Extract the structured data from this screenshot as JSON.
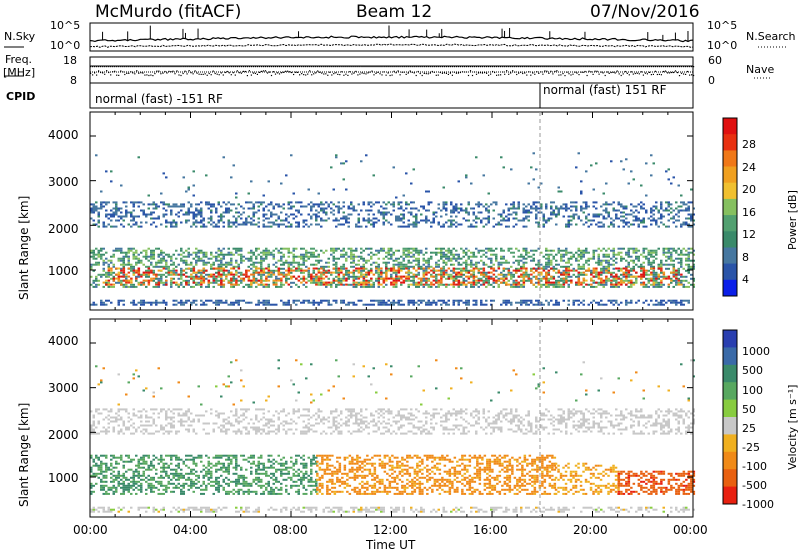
{
  "header": {
    "station": "McMurdo (fitACF)",
    "beam": "Beam 12",
    "date": "07/Nov/2016"
  },
  "left_labels": {
    "nsky": "N.Sky",
    "freq": "Freq.",
    "freq_unit": "[MHz]",
    "cpid": "CPID"
  },
  "right_labels": {
    "nsearch": "N.Search",
    "nave": "Nave"
  },
  "noise_panel": {
    "left_ticks": [
      "10^5",
      "10^0"
    ],
    "right_ticks": [
      "10^5",
      "10^0"
    ]
  },
  "freq_panel": {
    "left_ticks": [
      "18",
      "8"
    ],
    "right_ticks": [
      "60",
      "0"
    ]
  },
  "cpid_panel": {
    "segments": [
      "normal (fast) -151 RF",
      "normal (fast) 151 RF"
    ],
    "change_time_hours": 18.0
  },
  "x_axis": {
    "title": "Time UT",
    "ticks": [
      "00:00",
      "04:00",
      "08:00",
      "12:00",
      "16:00",
      "20:00",
      "00:00"
    ]
  },
  "power_panel": {
    "ylabel": "Slant Range [km]",
    "yticks": [
      "4000",
      "3000",
      "2000",
      "1000"
    ],
    "colorbar_label": "Power [dB]",
    "colorbar_ticks": [
      "28",
      "24",
      "20",
      "16",
      "12",
      "8",
      "4"
    ],
    "colors": [
      "#0b1fe8",
      "#2a54a8",
      "#4677a0",
      "#3a8a6a",
      "#52a070",
      "#86c060",
      "#f0c030",
      "#f0a020",
      "#f07818",
      "#e83010",
      "#e01010"
    ]
  },
  "velocity_panel": {
    "ylabel": "Slant Range [km]",
    "yticks": [
      "4000",
      "3000",
      "2000",
      "1000"
    ],
    "colorbar_label": "Velocity [m s⁻¹]",
    "colorbar_ticks": [
      "1000",
      "500",
      "100",
      "50",
      "25",
      "-25",
      "-100",
      "-500",
      "-1000"
    ],
    "colors": [
      "#2a3fb0",
      "#3a6aa8",
      "#3a8a6a",
      "#58a860",
      "#88cc40",
      "#c8c8c8",
      "#f0b020",
      "#f08a18",
      "#e86010",
      "#e82010"
    ]
  },
  "chart_data": [
    {
      "type": "heatmap",
      "title": "Power",
      "xlabel": "Time UT",
      "ylabel": "Slant Range [km]",
      "x_range_hours": [
        0,
        24
      ],
      "ylim": [
        180,
        4600
      ],
      "colorbar": {
        "label": "Power [dB]",
        "ticks": [
          28,
          24,
          20,
          16,
          12,
          8,
          4
        ]
      },
      "features": [
        {
          "band": "near range",
          "time_start_h": 0.0,
          "time_end_h": 24.0,
          "range_km": [
            600,
            1500
          ],
          "power_db": 10
        },
        {
          "band": "echo band",
          "time_start_h": 0.0,
          "time_end_h": 24.0,
          "range_km": [
            1950,
            2500
          ],
          "power_db": 6
        },
        {
          "band": "strong patches",
          "time_start_h": 0.5,
          "time_end_h": 23.5,
          "range_km": [
            650,
            1100
          ],
          "power_db": 24
        }
      ]
    },
    {
      "type": "heatmap",
      "title": "Velocity",
      "xlabel": "Time UT",
      "ylabel": "Slant Range [km]",
      "x_range_hours": [
        0,
        24
      ],
      "ylim": [
        180,
        4600
      ],
      "colorbar": {
        "label": "Velocity [m s⁻¹]",
        "ticks": [
          1000,
          500,
          100,
          50,
          25,
          -25,
          -100,
          -500,
          -1000
        ]
      },
      "features": [
        {
          "band": "near range toward",
          "time_start_h": 0.0,
          "time_end_h": 9.0,
          "range_km": [
            600,
            1500
          ],
          "velocity_ms": 120
        },
        {
          "band": "near range away",
          "time_start_h": 9.0,
          "time_end_h": 18.5,
          "range_km": [
            600,
            1500
          ],
          "velocity_ms": -150
        },
        {
          "band": "late strong away",
          "time_start_h": 21.0,
          "time_end_h": 24.0,
          "range_km": [
            600,
            1100
          ],
          "velocity_ms": -800
        },
        {
          "band": "ground scatter",
          "time_start_h": 0.0,
          "time_end_h": 24.0,
          "range_km": [
            1950,
            2500
          ],
          "velocity_ms": 0
        }
      ]
    }
  ]
}
